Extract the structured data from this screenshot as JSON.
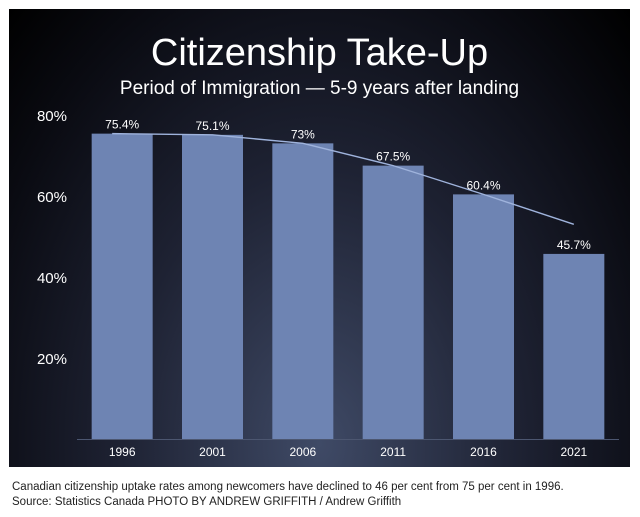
{
  "chart_data": {
    "type": "bar",
    "title": "Citizenship Take-Up",
    "subtitle": "Period of Immigration — 5-9 years after landing",
    "categories": [
      "1996",
      "2001",
      "2006",
      "2011",
      "2016",
      "2021"
    ],
    "values": [
      75.4,
      75.1,
      73,
      67.5,
      60.4,
      45.7
    ],
    "value_labels": [
      "75.4%",
      "75.1%",
      "73%",
      "67.5%",
      "60.4%",
      "45.7%"
    ],
    "yticks": [
      20,
      40,
      60,
      80
    ],
    "ytick_labels": [
      "20%",
      "40%",
      "60%",
      "80%"
    ],
    "ylim": [
      0,
      80
    ],
    "trend_line": true,
    "grid": false,
    "colors": {
      "bar": "#6e84b3",
      "trend": "#9fb3dc",
      "text": "#ffffff"
    }
  },
  "caption": {
    "line1": "Canadian citizenship uptake rates among newcomers have declined to 46 per cent from 75 per cent in 1996.",
    "line2": "Source: Statistics Canada PHOTO BY ANDREW GRIFFITH / Andrew Griffith"
  }
}
